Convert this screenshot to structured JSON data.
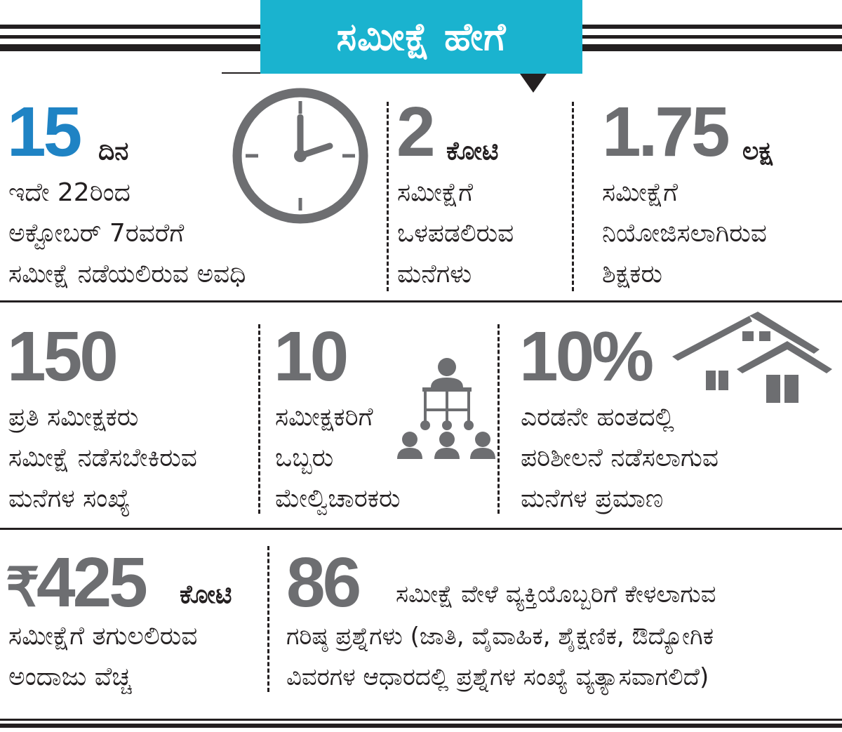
{
  "header": {
    "title": "ಸಮೀಕ್ಷೆ ಹೇಗೆ"
  },
  "colors": {
    "accent": "#1ab3cf",
    "highlight_number": "#1f83c4",
    "number_grey": "#6d6e71",
    "text": "#231f20"
  },
  "row1": {
    "days": {
      "number": "15",
      "unit": "ದಿನ",
      "lines": [
        "ಇದೇ 22ರಿಂದ",
        "ಅಕ್ಟೋಬರ್ 7ರವರೆಗೆ",
        "ಸಮೀಕ್ಷೆ ನಡೆಯಲಿರುವ ಅವಧಿ"
      ],
      "icon": "clock-icon"
    },
    "houses": {
      "number": "2",
      "unit": "ಕೋಟಿ",
      "lines": [
        "ಸಮೀಕ್ಷೆಗೆ",
        "ಒಳಪಡಲಿರುವ",
        "ಮನೆಗಳು"
      ]
    },
    "teachers": {
      "number": "1.75",
      "unit": "ಲಕ್ಷ",
      "lines": [
        "ಸಮೀಕ್ಷೆಗೆ",
        "ನಿಯೋಜಿಸಲಾಗಿರುವ",
        "ಶಿಕ್ಷಕರು"
      ]
    }
  },
  "row2": {
    "per_enumerator": {
      "number": "150",
      "lines": [
        "ಪ್ರತಿ ಸಮೀಕ್ಷಕರು",
        "ಸಮೀಕ್ಷೆ ನಡೆಸಬೇಕಿರುವ",
        "ಮನೆಗಳ ಸಂಖ್ಯೆ"
      ]
    },
    "supervisors": {
      "number": "10",
      "lines": [
        "ಸಮೀಕ್ಷಕರಿಗೆ",
        "ಒಬ್ಬರು",
        "ಮೇಲ್ವಿಚಾರಕರು"
      ],
      "icon": "team-hierarchy-icon"
    },
    "recheck": {
      "number": "10%",
      "lines": [
        "ಎರಡನೇ ಹಂತದಲ್ಲಿ",
        "ಪರಿಶೀಲನೆ ನಡೆಸಲಾಗುವ",
        "ಮನೆಗಳ ಪ್ರಮಾಣ"
      ],
      "icon": "houses-icon"
    }
  },
  "row3": {
    "cost": {
      "currency": "₹",
      "number": "425",
      "unit": "ಕೋಟಿ",
      "lines": [
        "ಸಮೀಕ್ಷೆಗೆ ತಗುಲಲಿರುವ",
        "ಅಂದಾಜು ವೆಚ್ಚ"
      ]
    },
    "questions": {
      "number": "86",
      "line1": "ಸಮೀಕ್ಷೆ ವೇಳೆ ವ್ಯಕ್ತಿಯೊಬ್ಬರಿಗೆ ಕೇಳಲಾಗುವ",
      "lines": [
        "ಗರಿಷ್ಠ ಪ್ರಶ್ನೆಗಳು (ಜಾತಿ, ವೈವಾಹಿಕ, ಶೈಕ್ಷಣಿಕ, ಔದ್ಯೋಗಿಕ",
        "ವಿವರಗಳ ಆಧಾರದಲ್ಲಿ ಪ್ರಶ್ನೆಗಳ ಸಂಖ್ಯೆ ವ್ಯತ್ಯಾಸವಾಗಲಿದೆ)"
      ]
    }
  }
}
